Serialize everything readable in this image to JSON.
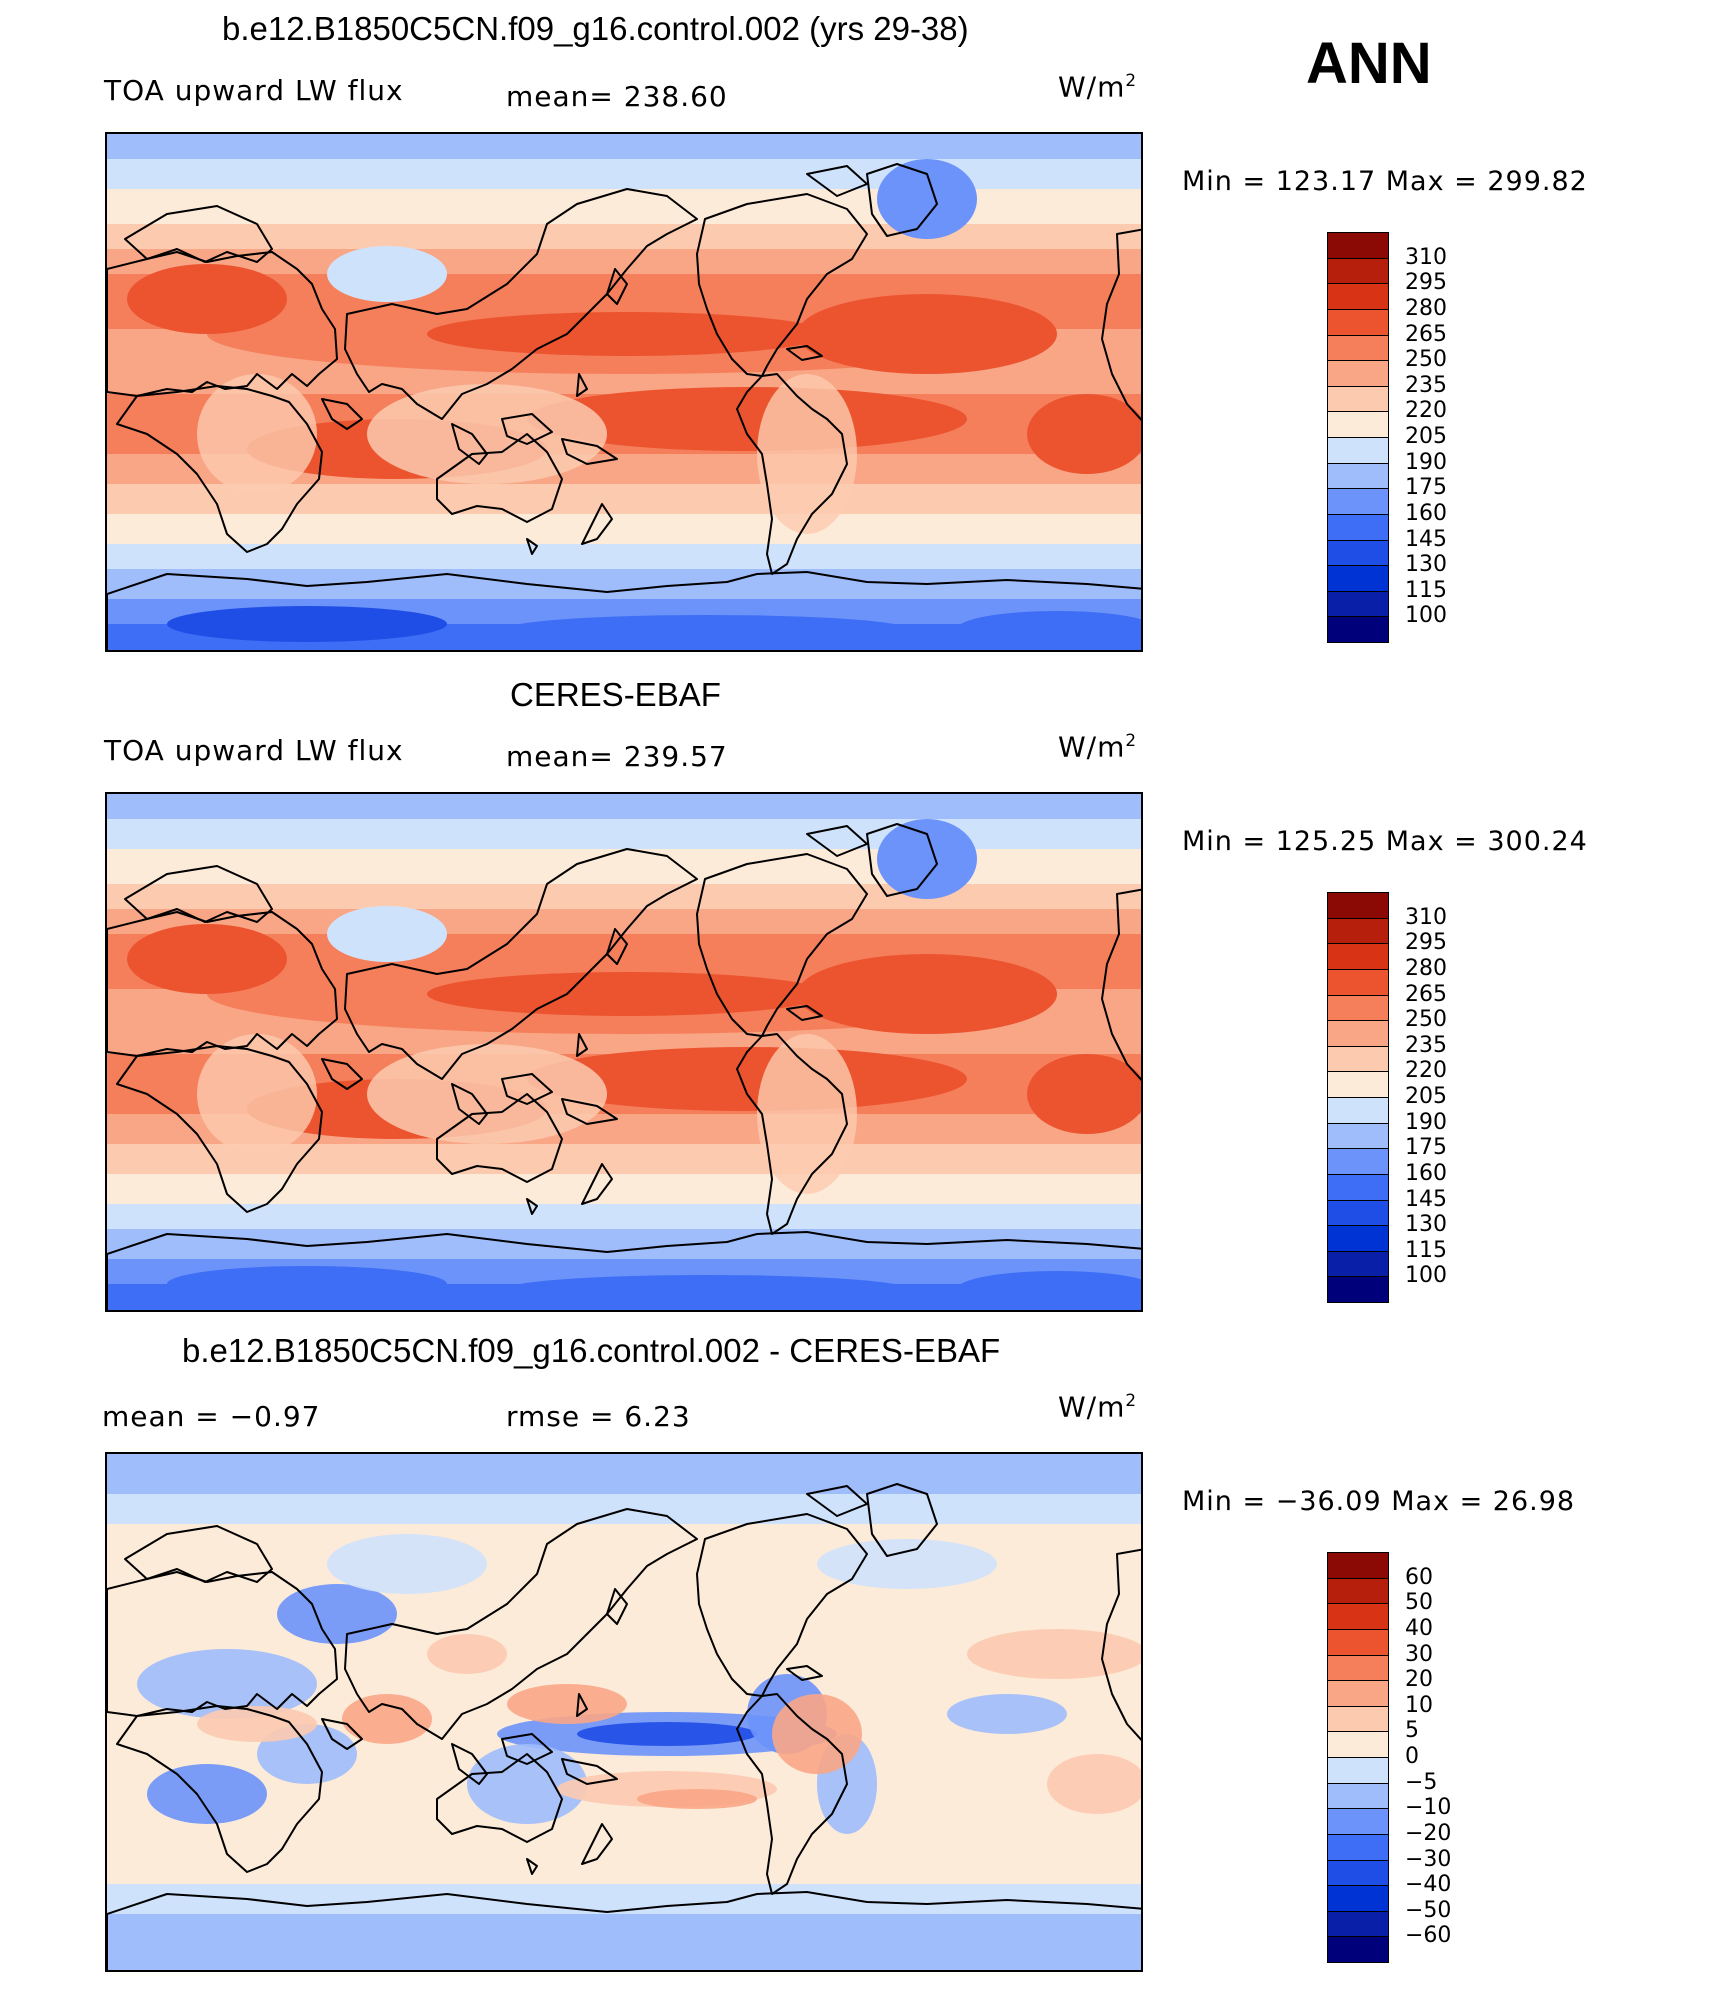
{
  "season": "ANN",
  "units_base": "W/m",
  "units_exp": "2",
  "panels": [
    {
      "title": "b.e12.B1850C5CN.f09_g16.control.002 (yrs 29-38)",
      "variable": "TOA upward LW flux",
      "stat1": "mean=  238.60",
      "stat2": "",
      "minmax": "Min  =  123.17  Max  =  299.82",
      "scale": "abs"
    },
    {
      "title": "CERES-EBAF",
      "variable": "TOA upward LW flux",
      "stat1": "mean=  239.57",
      "stat2": "",
      "minmax": "Min  =  125.25  Max  =  300.24",
      "scale": "abs"
    },
    {
      "title": "b.e12.B1850C5CN.f09_g16.control.002 - CERES-EBAF",
      "variable": "",
      "stat1": "mean  =     −0.97",
      "stat2": "rmse  =      6.23",
      "minmax": "Min  =  −36.09  Max  =     26.98",
      "scale": "diff"
    }
  ],
  "chart_data": [
    {
      "type": "heatmap",
      "title": "b.e12.B1850C5CN.f09_g16.control.002 (yrs 29-38)",
      "variable": "TOA upward LW flux",
      "units": "W/m2",
      "mean": 238.6,
      "min": 123.17,
      "max": 299.82,
      "levels": [
        100,
        115,
        130,
        145,
        160,
        175,
        190,
        205,
        220,
        235,
        250,
        265,
        280,
        295,
        310
      ],
      "colors": [
        "#00007a",
        "#0a1fa8",
        "#0033d4",
        "#1f4ee6",
        "#3d6ef5",
        "#6b93fa",
        "#9fbcfb",
        "#cfe2fb",
        "#fdebd9",
        "#fccaaf",
        "#f9a686",
        "#f57f5b",
        "#ec5430",
        "#d83315",
        "#b51f0b",
        "#8c0a05"
      ]
    },
    {
      "type": "heatmap",
      "title": "CERES-EBAF",
      "variable": "TOA upward LW flux",
      "units": "W/m2",
      "mean": 239.57,
      "min": 125.25,
      "max": 300.24,
      "levels": [
        100,
        115,
        130,
        145,
        160,
        175,
        190,
        205,
        220,
        235,
        250,
        265,
        280,
        295,
        310
      ],
      "colors": [
        "#00007a",
        "#0a1fa8",
        "#0033d4",
        "#1f4ee6",
        "#3d6ef5",
        "#6b93fa",
        "#9fbcfb",
        "#cfe2fb",
        "#fdebd9",
        "#fccaaf",
        "#f9a686",
        "#f57f5b",
        "#ec5430",
        "#d83315",
        "#b51f0b",
        "#8c0a05"
      ]
    },
    {
      "type": "heatmap",
      "title": "b.e12.B1850C5CN.f09_g16.control.002 - CERES-EBAF",
      "units": "W/m2",
      "mean": -0.97,
      "rmse": 6.23,
      "min": -36.09,
      "max": 26.98,
      "levels": [
        -60,
        -50,
        -40,
        -30,
        -20,
        -10,
        -5,
        0,
        5,
        10,
        20,
        30,
        40,
        50,
        60
      ],
      "colors": [
        "#00007a",
        "#0a1fa8",
        "#0033d4",
        "#1f4ee6",
        "#3d6ef5",
        "#6b93fa",
        "#9fbcfb",
        "#cfe2fb",
        "#fdebd9",
        "#fccaaf",
        "#f9a686",
        "#f57f5b",
        "#ec5430",
        "#d83315",
        "#b51f0b",
        "#8c0a05"
      ]
    }
  ]
}
